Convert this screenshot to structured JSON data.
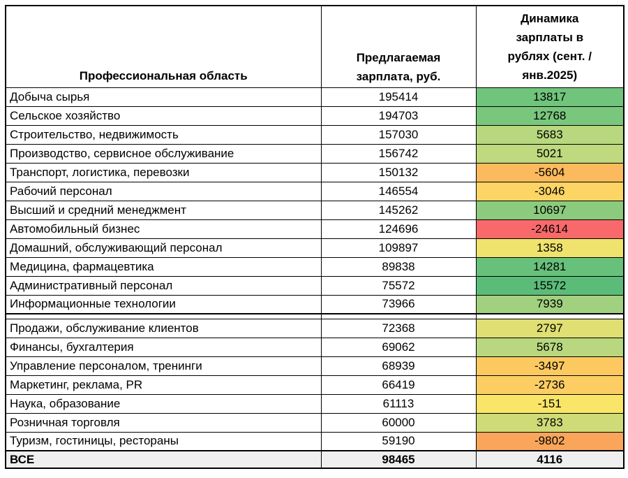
{
  "table": {
    "headers": {
      "col1": "Профессиональная область",
      "col2": "Предлагаемая зарплата, руб.",
      "col2_lines": [
        "Предлагаемая",
        "зарплата, руб."
      ],
      "col3": "Динамика зарплаты в рублях (сент. / янв.2025)",
      "col3_lines": [
        "Динамика",
        "зарплаты в",
        "рублях (сент. /",
        "янв.2025)"
      ]
    },
    "section_break_after": 12,
    "rows": [
      {
        "area": "Добыча сырья",
        "salary": "195414",
        "dynamic": "13817",
        "dynamic_color": "#71C47C"
      },
      {
        "area": "Сельское хозяйство",
        "salary": "194703",
        "dynamic": "12768",
        "dynamic_color": "#79C77D"
      },
      {
        "area": "Строительство, недвижимость",
        "salary": "157030",
        "dynamic": "5683",
        "dynamic_color": "#B8D77F"
      },
      {
        "area": "Производство, сервисное обслуживание",
        "salary": "156742",
        "dynamic": "5021",
        "dynamic_color": "#BED97E"
      },
      {
        "area": "Транспорт, логистика, перевозки",
        "salary": "150132",
        "dynamic": "-5604",
        "dynamic_color": "#FBBA5D"
      },
      {
        "area": "Рабочий персонал",
        "salary": "146554",
        "dynamic": "-3046",
        "dynamic_color": "#FDD565"
      },
      {
        "area": "Высший и средний менеджмент",
        "salary": "145262",
        "dynamic": "10697",
        "dynamic_color": "#8CCA7E"
      },
      {
        "area": "Автомобильный бизнес",
        "salary": "124696",
        "dynamic": "-24614",
        "dynamic_color": "#F8696B"
      },
      {
        "area": "Домашний, обслуживающий персонал",
        "salary": "109897",
        "dynamic": "1358",
        "dynamic_color": "#F0E36D"
      },
      {
        "area": "Медицина, фармацевтика",
        "salary": "89838",
        "dynamic": "14281",
        "dynamic_color": "#68C17B"
      },
      {
        "area": "Административный персонал",
        "salary": "75572",
        "dynamic": "15572",
        "dynamic_color": "#5BBC79"
      },
      {
        "area": "Информационные технологии",
        "salary": "73966",
        "dynamic": "7939",
        "dynamic_color": "#A1D07F"
      },
      {
        "area": "Продажи, обслуживание клиентов",
        "salary": "72368",
        "dynamic": "2797",
        "dynamic_color": "#DFDF73"
      },
      {
        "area": "Финансы, бухгалтерия",
        "salary": "69062",
        "dynamic": "5678",
        "dynamic_color": "#B8D77F"
      },
      {
        "area": "Управление персоналом, тренинги",
        "salary": "68939",
        "dynamic": "-3497",
        "dynamic_color": "#FCC961"
      },
      {
        "area": "Маркетинг, реклама, PR",
        "salary": "66419",
        "dynamic": "-2736",
        "dynamic_color": "#FCCD63"
      },
      {
        "area": "Наука, образование",
        "salary": "61113",
        "dynamic": "-151",
        "dynamic_color": "#F9E567"
      },
      {
        "area": "Розничная торговля",
        "salary": "60000",
        "dynamic": "3783",
        "dynamic_color": "#CFDB76"
      },
      {
        "area": "Туризм, гостиницы, рестораны",
        "salary": "59190",
        "dynamic": "-9802",
        "dynamic_color": "#F9A65A"
      }
    ],
    "total": {
      "area": "ВСЕ",
      "salary": "98465",
      "dynamic": "4116",
      "bg_color": "#EFEFEF"
    },
    "colors": {
      "border": "#000000",
      "header_bg": "#FFFFFF",
      "total_bg": "#EFEFEF",
      "scale_min_red": "#F8696B",
      "scale_mid_yellow": "#F9E567",
      "scale_max_green": "#5BBC79"
    }
  }
}
